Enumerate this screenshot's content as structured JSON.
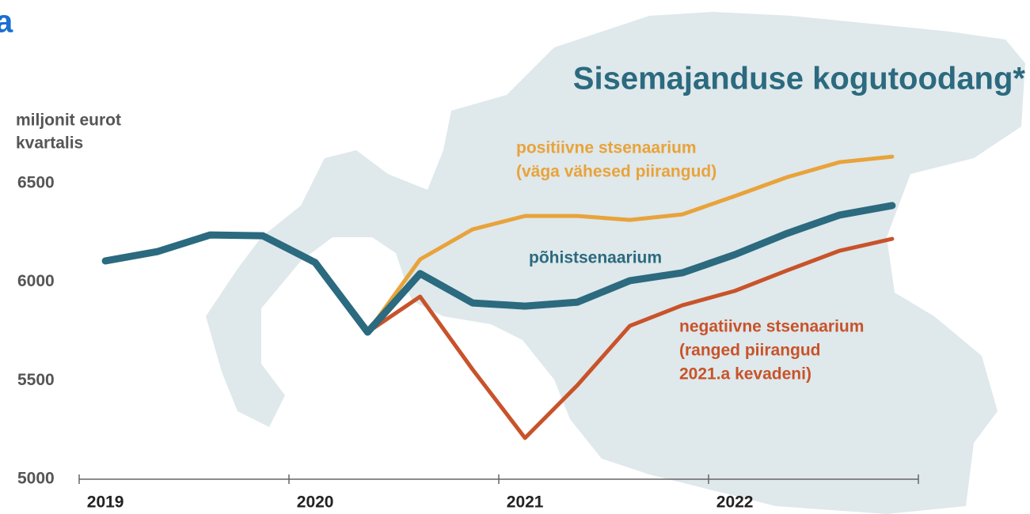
{
  "chart_data": {
    "type": "line",
    "title": "Sisemajanduse kogutoodang*",
    "y_label": [
      "miljonit eurot",
      "kvartalis"
    ],
    "corner_mark": "a",
    "categories": [
      "2019",
      null,
      null,
      null,
      "2020",
      null,
      null,
      null,
      "2021",
      null,
      null,
      null,
      "2022",
      null,
      null,
      null
    ],
    "series": [
      {
        "name": "positiivne stsenaarium (väga vähesed piirangud)",
        "label_lines": [
          "positiivne stsenaarium",
          "(väga vähesed piirangud)"
        ],
        "color": "#e8a33a",
        "width": 5,
        "values": [
          null,
          null,
          null,
          null,
          null,
          5746,
          6115,
          6267,
          6335,
          6335,
          6315,
          6343,
          6436,
          6532,
          6608,
          6636
        ]
      },
      {
        "name": "negatiivne stsenaarium (ranged piirangud 2021.a kevadeni)",
        "label_lines": [
          "negatiivne stsenaarium",
          "(ranged piirangud",
          "2021.a kevadeni)"
        ],
        "color": "#c8532a",
        "width": 5,
        "values": [
          null,
          null,
          null,
          null,
          null,
          5746,
          5926,
          5557,
          5209,
          5477,
          5778,
          5882,
          5955,
          6059,
          6159,
          6219
        ]
      },
      {
        "name": "põhistsenaarium",
        "label_lines": [
          "põhistsenaarium"
        ],
        "color": "#2b6a7f",
        "width": 9,
        "values": [
          6107,
          6155,
          6239,
          6235,
          6099,
          5746,
          6043,
          5894,
          5878,
          5898,
          6007,
          6047,
          6139,
          6247,
          6340,
          6388
        ]
      }
    ],
    "ylim": [
      5000,
      6500
    ],
    "yticks": [
      5000,
      5500,
      6000,
      6500
    ]
  }
}
